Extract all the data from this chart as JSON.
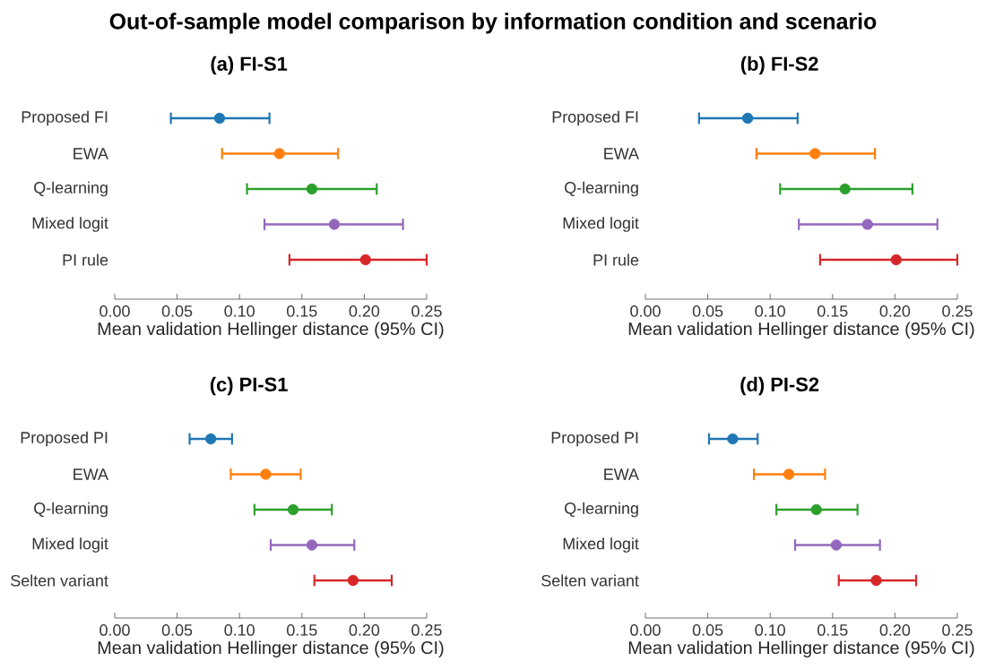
{
  "chart_data": [
    {
      "type": "other",
      "title": "Out-of-sample model comparison by information condition and scenario"
    },
    {
      "type": "scatter",
      "orientation": "horizontal",
      "title": "(a) FI-S1",
      "xlabel": "Mean validation Hellinger distance (95% CI)",
      "marker": "circle",
      "categories": [
        "Proposed FI",
        "EWA",
        "Q-learning",
        "Mixed logit",
        "PI rule"
      ],
      "values": [
        0.084,
        0.132,
        0.158,
        0.176,
        0.201
      ],
      "errors": [
        [
          0.045,
          0.124
        ],
        [
          0.086,
          0.179
        ],
        [
          0.106,
          0.21
        ],
        [
          0.12,
          0.231
        ],
        [
          0.14,
          0.25
        ]
      ],
      "colors": [
        "#1f77b4",
        "#ff7f0e",
        "#2ca02c",
        "#9467bd",
        "#d62728"
      ],
      "xlim": [
        0,
        0.25
      ],
      "xticks": [
        {
          "value": 0,
          "label": "0.00"
        },
        {
          "value": 0.05,
          "label": "0.05"
        },
        {
          "value": 0.1,
          "label": "0.10"
        },
        {
          "value": 0.15,
          "label": "0.15"
        },
        {
          "value": 0.2,
          "label": "0.20"
        },
        {
          "value": 0.25,
          "label": "0.25"
        }
      ]
    },
    {
      "type": "scatter",
      "orientation": "horizontal",
      "title": "(b) FI-S2",
      "xlabel": "Mean validation Hellinger distance (95% CI)",
      "marker": "circle",
      "categories": [
        "Proposed FI",
        "EWA",
        "Q-learning",
        "Mixed logit",
        "PI rule"
      ],
      "values": [
        0.082,
        0.136,
        0.16,
        0.178,
        0.201
      ],
      "errors": [
        [
          0.043,
          0.122
        ],
        [
          0.089,
          0.184
        ],
        [
          0.108,
          0.214
        ],
        [
          0.123,
          0.234
        ],
        [
          0.14,
          0.25
        ]
      ],
      "colors": [
        "#1f77b4",
        "#ff7f0e",
        "#2ca02c",
        "#9467bd",
        "#d62728"
      ],
      "xlim": [
        0,
        0.25
      ],
      "xticks": [
        {
          "value": 0,
          "label": "0.00"
        },
        {
          "value": 0.05,
          "label": "0.05"
        },
        {
          "value": 0.1,
          "label": "0.10"
        },
        {
          "value": 0.15,
          "label": "0.15"
        },
        {
          "value": 0.2,
          "label": "0.20"
        },
        {
          "value": 0.25,
          "label": "0.25"
        }
      ]
    },
    {
      "type": "scatter",
      "orientation": "horizontal",
      "title": "(c) PI-S1",
      "xlabel": "Mean validation Hellinger distance (95% CI)",
      "marker": "circle",
      "categories": [
        "Proposed PI",
        "EWA",
        "Q-learning",
        "Mixed logit",
        "Selten variant"
      ],
      "values": [
        0.077,
        0.121,
        0.143,
        0.158,
        0.191
      ],
      "errors": [
        [
          0.06,
          0.094
        ],
        [
          0.093,
          0.149
        ],
        [
          0.112,
          0.174
        ],
        [
          0.125,
          0.192
        ],
        [
          0.16,
          0.222
        ]
      ],
      "colors": [
        "#1f77b4",
        "#ff7f0e",
        "#2ca02c",
        "#9467bd",
        "#d62728"
      ],
      "xlim": [
        0,
        0.25
      ],
      "xticks": [
        {
          "value": 0,
          "label": "0.00"
        },
        {
          "value": 0.05,
          "label": "0.05"
        },
        {
          "value": 0.1,
          "label": "0.10"
        },
        {
          "value": 0.15,
          "label": "0.15"
        },
        {
          "value": 0.2,
          "label": "0.20"
        },
        {
          "value": 0.25,
          "label": "0.25"
        }
      ]
    },
    {
      "type": "scatter",
      "orientation": "horizontal",
      "title": "(d) PI-S2",
      "xlabel": "Mean validation Hellinger distance (95% CI)",
      "marker": "circle",
      "categories": [
        "Proposed PI",
        "EWA",
        "Q-learning",
        "Mixed logit",
        "Selten variant"
      ],
      "values": [
        0.07,
        0.115,
        0.137,
        0.153,
        0.185
      ],
      "errors": [
        [
          0.051,
          0.09
        ],
        [
          0.087,
          0.144
        ],
        [
          0.105,
          0.17
        ],
        [
          0.12,
          0.188
        ],
        [
          0.155,
          0.217
        ]
      ],
      "colors": [
        "#1f77b4",
        "#ff7f0e",
        "#2ca02c",
        "#9467bd",
        "#d62728"
      ],
      "xlim": [
        0,
        0.25
      ],
      "xticks": [
        {
          "value": 0,
          "label": "0.00"
        },
        {
          "value": 0.05,
          "label": "0.05"
        },
        {
          "value": 0.1,
          "label": "0.10"
        },
        {
          "value": 0.15,
          "label": "0.15"
        },
        {
          "value": 0.2,
          "label": "0.20"
        },
        {
          "value": 0.25,
          "label": "0.25"
        }
      ]
    }
  ]
}
